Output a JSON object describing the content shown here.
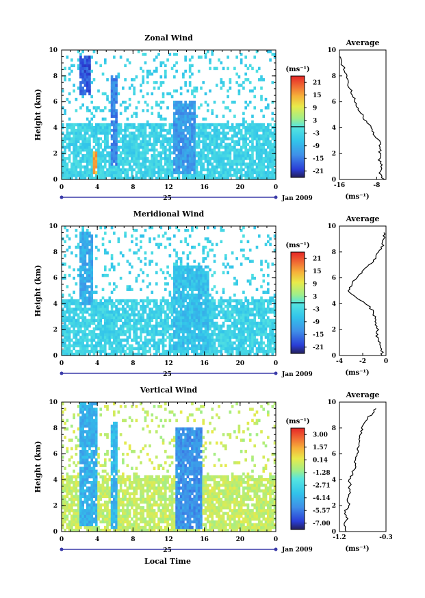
{
  "figure": {
    "xlabel_bottom": "Local Time",
    "date_label": "Jan 2009",
    "day_label": "25",
    "ylabel": "Height (km)",
    "avg_title": "Average"
  },
  "chart_data": [
    {
      "type": "heatmap",
      "title": "Zonal Wind",
      "xlabel": "",
      "ylabel": "Height (km)",
      "x_ticks": [
        "0",
        "4",
        "8",
        "12",
        "16",
        "20",
        "0"
      ],
      "y_ticks": [
        "0",
        "2",
        "4",
        "6",
        "8",
        "10"
      ],
      "xlim": [
        0,
        24
      ],
      "ylim": [
        0,
        10
      ],
      "colorbar": {
        "unit": "(ms⁻¹)",
        "ticks": [
          "21",
          "15",
          "9",
          "3",
          "-3",
          "-9",
          "-15",
          "-21"
        ],
        "range": [
          -24,
          24
        ]
      },
      "regions": [
        {
          "x": [
            2.0,
            3.2
          ],
          "y": [
            6.5,
            9.5
          ],
          "value": -18
        },
        {
          "x": [
            3.5,
            4.0
          ],
          "y": [
            0.5,
            2.2
          ],
          "value": 15
        },
        {
          "x": [
            5.6,
            6.2
          ],
          "y": [
            1.0,
            8.0
          ],
          "value": -14
        },
        {
          "x": [
            12.4,
            15.0
          ],
          "y": [
            0.5,
            6.0
          ],
          "value": -12
        }
      ],
      "average": {
        "title": "Average",
        "x_ticks": [
          "-16",
          "-8"
        ],
        "xlim": [
          -16,
          -6
        ],
        "xlabel": "(ms⁻¹)",
        "y_ticks": [
          "0",
          "2",
          "4",
          "6",
          "8",
          "10"
        ],
        "ylim": [
          0,
          10
        ],
        "profile": {
          "height": [
            0,
            0.5,
            1,
            1.5,
            2,
            2.5,
            3,
            3.5,
            4,
            4.5,
            5,
            5.5,
            6,
            6.5,
            7,
            7.5,
            8,
            8.5,
            9,
            9.5
          ],
          "value": [
            -6.5,
            -7.2,
            -7.0,
            -7.4,
            -7.3,
            -7.2,
            -7.6,
            -8.5,
            -9.3,
            -10.3,
            -11.2,
            -12.0,
            -12.6,
            -13.1,
            -13.7,
            -14.2,
            -14.6,
            -15.0,
            -15.5,
            -15.8
          ]
        }
      }
    },
    {
      "type": "heatmap",
      "title": "Meridional Wind",
      "xlabel": "",
      "ylabel": "Height (km)",
      "x_ticks": [
        "0",
        "4",
        "8",
        "12",
        "16",
        "20",
        "0"
      ],
      "y_ticks": [
        "0",
        "2",
        "4",
        "6",
        "8",
        "10"
      ],
      "xlim": [
        0,
        24
      ],
      "ylim": [
        0,
        10
      ],
      "colorbar": {
        "unit": "(ms⁻¹)",
        "ticks": [
          "21",
          "15",
          "9",
          "3",
          "-3",
          "-9",
          "-15",
          "-21"
        ],
        "range": [
          -24,
          24
        ]
      },
      "regions": [
        {
          "x": [
            2.0,
            3.5
          ],
          "y": [
            4.0,
            9.5
          ],
          "value": -10
        },
        {
          "x": [
            12.5,
            16.5
          ],
          "y": [
            0.5,
            7.0
          ],
          "value": -7
        }
      ],
      "average": {
        "title": "Average",
        "x_ticks": [
          "-4",
          "-2",
          "0"
        ],
        "xlim": [
          -4,
          0
        ],
        "xlabel": "(ms⁻¹)",
        "y_ticks": [
          "0",
          "2",
          "4",
          "6",
          "8",
          "10"
        ],
        "ylim": [
          0,
          10
        ],
        "profile": {
          "height": [
            0,
            0.5,
            1,
            1.5,
            2,
            2.5,
            3,
            3.5,
            4,
            4.5,
            5,
            5.5,
            6,
            6.5,
            7,
            7.5,
            8,
            8.5,
            9,
            9.5
          ],
          "value": [
            -0.3,
            -0.4,
            -0.6,
            -0.8,
            -0.7,
            -0.9,
            -1.0,
            -1.2,
            -1.7,
            -2.6,
            -3.2,
            -3.0,
            -2.6,
            -2.0,
            -1.4,
            -0.9,
            -0.6,
            -0.3,
            -0.2,
            -0.1
          ]
        }
      }
    },
    {
      "type": "heatmap",
      "title": "Vertical Wind",
      "xlabel": "Local Time",
      "ylabel": "Height (km)",
      "x_ticks": [
        "0",
        "4",
        "8",
        "12",
        "16",
        "20",
        "0"
      ],
      "y_ticks": [
        "0",
        "2",
        "4",
        "6",
        "8",
        "10"
      ],
      "xlim": [
        0,
        24
      ],
      "ylim": [
        0,
        10
      ],
      "colorbar": {
        "unit": "(ms⁻¹)",
        "ticks": [
          "3.00",
          "1.57",
          "0.14",
          "-1.28",
          "-2.71",
          "-4.14",
          "-5.57",
          "-7.00"
        ],
        "range": [
          -7.71,
          3.71
        ]
      },
      "regions": [
        {
          "x": [
            2.0,
            4.0
          ],
          "y": [
            0.4,
            10.0
          ],
          "value": -4.2
        },
        {
          "x": [
            5.5,
            6.2
          ],
          "y": [
            0.3,
            8.5
          ],
          "value": -4.0
        },
        {
          "x": [
            12.8,
            15.8
          ],
          "y": [
            0.3,
            8.0
          ],
          "value": -5.0
        }
      ],
      "average": {
        "title": "Average",
        "x_ticks": [
          "-1.2",
          "-0.3"
        ],
        "xlim": [
          -1.2,
          -0.3
        ],
        "xlabel": "(ms⁻¹)",
        "y_ticks": [
          "0",
          "2",
          "4",
          "6",
          "8",
          "10"
        ],
        "ylim": [
          0,
          10
        ],
        "profile": {
          "height": [
            0,
            0.5,
            1,
            1.5,
            2,
            2.5,
            3,
            3.5,
            4,
            4.5,
            5,
            5.5,
            6,
            6.5,
            7,
            7.5,
            8,
            8.5,
            9,
            9.5
          ],
          "value": [
            -1.05,
            -1.1,
            -1.05,
            -1.1,
            -1.0,
            -1.05,
            -1.0,
            -1.0,
            -1.0,
            -0.95,
            -0.9,
            -0.9,
            -0.85,
            -0.85,
            -0.8,
            -0.8,
            -0.75,
            -0.7,
            -0.6,
            -0.5
          ]
        }
      }
    }
  ]
}
